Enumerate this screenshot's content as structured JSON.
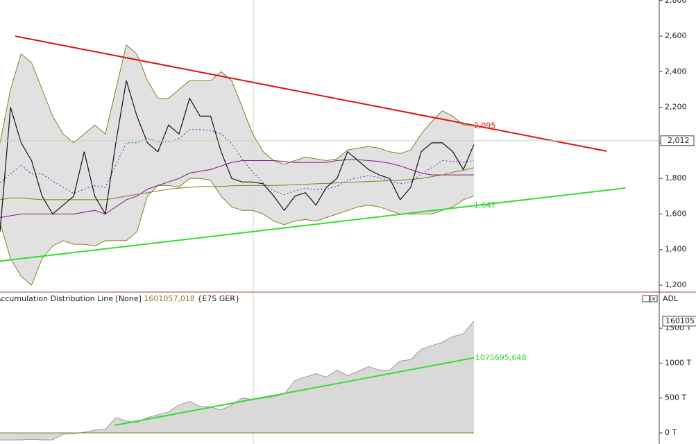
{
  "chart_data": [
    {
      "type": "line",
      "x": [
        0,
        1,
        2,
        3,
        4,
        5,
        6,
        7,
        8,
        9,
        10,
        11,
        12,
        13,
        14,
        15,
        16,
        17,
        18,
        19,
        20,
        21,
        22,
        23,
        24,
        25,
        26,
        27,
        28,
        29,
        30,
        31,
        32,
        33,
        34,
        35,
        36,
        37,
        38,
        39,
        40,
        41,
        42,
        43,
        44,
        45
      ],
      "xlim": [
        0,
        62.6
      ],
      "ylim": [
        1165,
        2803
      ],
      "yticks": [
        {
          "value": 1200,
          "label": "1,200"
        },
        {
          "value": 1400,
          "label": "1,400"
        },
        {
          "value": 1600,
          "label": "1,600"
        },
        {
          "value": 1800,
          "label": "1,800"
        },
        {
          "value": 2000,
          "label": "2,000"
        },
        {
          "value": 2200,
          "label": "2,200"
        },
        {
          "value": 2400,
          "label": "2,400"
        },
        {
          "value": 2600,
          "label": "2,600"
        },
        {
          "value": 2800,
          "label": "2,800"
        }
      ],
      "series": [
        {
          "color": "#808020",
          "fill": "#d9d9d9",
          "values": [
            2000,
            2300,
            2500,
            2450,
            2300,
            2150,
            2050,
            2000,
            2050,
            2100,
            2050,
            2300,
            2550,
            2500,
            2350,
            2250,
            2250,
            2300,
            2350,
            2350,
            2350,
            2400,
            2350,
            2200,
            2050,
            1950,
            1900,
            1880,
            1900,
            1920,
            1910,
            1900,
            1910,
            1960,
            1970,
            1980,
            1970,
            1950,
            1940,
            1960,
            2050,
            2120,
            2180,
            2150,
            2100,
            2100
          ]
        },
        {
          "color": "#808020",
          "values": [
            1550,
            1350,
            1250,
            1200,
            1350,
            1420,
            1450,
            1430,
            1430,
            1420,
            1450,
            1450,
            1450,
            1500,
            1700,
            1760,
            1760,
            1750,
            1800,
            1800,
            1790,
            1700,
            1640,
            1620,
            1620,
            1600,
            1560,
            1540,
            1560,
            1570,
            1560,
            1580,
            1600,
            1620,
            1640,
            1650,
            1640,
            1620,
            1600,
            1600,
            1600,
            1600,
            1620,
            1640,
            1680,
            1700
          ]
        },
        {
          "color": "#3040d0",
          "dash": true,
          "values": [
            1775,
            1825,
            1875,
            1825,
            1825,
            1785,
            1750,
            1715,
            1740,
            1760,
            1750,
            1875,
            2000,
            2000,
            2025,
            2005,
            2005,
            2025,
            2075,
            2075,
            2070,
            2050,
            1995,
            1910,
            1835,
            1775,
            1730,
            1710,
            1730,
            1745,
            1735,
            1740,
            1755,
            1790,
            1805,
            1815,
            1805,
            1785,
            1770,
            1780,
            1825,
            1860,
            1900,
            1895,
            1890,
            1900
          ]
        },
        {
          "color": "#7a1a7a",
          "values": [
            1580,
            1590,
            1600,
            1600,
            1600,
            1600,
            1600,
            1600,
            1610,
            1620,
            1600,
            1640,
            1680,
            1700,
            1740,
            1760,
            1780,
            1800,
            1830,
            1840,
            1850,
            1870,
            1890,
            1900,
            1900,
            1900,
            1900,
            1895,
            1890,
            1890,
            1890,
            1890,
            1900,
            1905,
            1905,
            1900,
            1895,
            1885,
            1870,
            1850,
            1830,
            1820,
            1820,
            1820,
            1820,
            1820
          ]
        },
        {
          "color": "#8a7a20",
          "values": [
            1680,
            1690,
            1690,
            1685,
            1680,
            1680,
            1680,
            1680,
            1680,
            1680,
            1680,
            1690,
            1700,
            1710,
            1720,
            1730,
            1740,
            1745,
            1750,
            1755,
            1755,
            1755,
            1758,
            1760,
            1760,
            1760,
            1760,
            1762,
            1765,
            1767,
            1770,
            1772,
            1775,
            1778,
            1780,
            1782,
            1785,
            1787,
            1790,
            1795,
            1800,
            1810,
            1820,
            1835,
            1845,
            1860
          ]
        },
        {
          "color": "#111111",
          "values": [
            1500,
            2200,
            2000,
            1900,
            1700,
            1600,
            1650,
            1700,
            1950,
            1700,
            1600,
            2000,
            2350,
            2150,
            2000,
            1950,
            2100,
            2050,
            2250,
            2150,
            2150,
            1950,
            1800,
            1780,
            1780,
            1770,
            1700,
            1620,
            1700,
            1720,
            1650,
            1750,
            1800,
            1950,
            1900,
            1850,
            1820,
            1800,
            1680,
            1750,
            1950,
            2000,
            2000,
            1950,
            1850,
            1990
          ]
        }
      ],
      "trendlines": [
        {
          "color": "#dd1111",
          "x": [
            1.45,
            57.6
          ],
          "values": [
            2600,
            1953
          ]
        },
        {
          "color": "#33dd33",
          "x": [
            0,
            59.4
          ],
          "values": [
            1335,
            1746
          ]
        }
      ],
      "annotations": [
        {
          "color": "#cc2222",
          "value": 2095,
          "label": "2,095"
        },
        {
          "color": "#33cc33",
          "value": 1647,
          "label": "1,647"
        }
      ],
      "last_price": {
        "value": 2012,
        "label": "2,012"
      }
    },
    {
      "type": "area",
      "title": "Accumulation Distribution Line [None]",
      "last_value": {
        "value": 1601.057018,
        "label": "1601057,018"
      },
      "symbol": "{E7S GER}",
      "axis_label": "ADL",
      "x": [
        0,
        1,
        2,
        3,
        4,
        5,
        6,
        7,
        8,
        9,
        10,
        11,
        12,
        13,
        14,
        15,
        16,
        17,
        18,
        19,
        20,
        21,
        22,
        23,
        24,
        25,
        26,
        27,
        28,
        29,
        30,
        31,
        32,
        33,
        34,
        35,
        36,
        37,
        38,
        39,
        40,
        41,
        42,
        43,
        44,
        45
      ],
      "xlim": [
        0,
        62.6
      ],
      "ylim": [
        -159,
        1988
      ],
      "yticks": [
        {
          "value": 0,
          "label": "0 T"
        },
        {
          "value": 500,
          "label": "500 T"
        },
        {
          "value": 1000,
          "label": "1000 T"
        },
        {
          "value": 1500,
          "label": "1500 T"
        }
      ],
      "series": [
        {
          "color": "#999999",
          "fill": "#d9d9d9",
          "values": [
            -100,
            -100,
            -100,
            -90,
            -100,
            -100,
            -20,
            -10,
            10,
            40,
            50,
            220,
            170,
            150,
            220,
            260,
            300,
            400,
            450,
            380,
            370,
            330,
            400,
            500,
            480,
            500,
            520,
            560,
            750,
            800,
            850,
            800,
            900,
            820,
            880,
            950,
            900,
            900,
            1030,
            1050,
            1200,
            1250,
            1300,
            1380,
            1420,
            1601.057018
          ]
        }
      ],
      "trendline": {
        "color": "#33dd33",
        "x": [
          10.9,
          45
        ],
        "values": [
          109,
          1075.695648
        ]
      },
      "trend_label": {
        "value": 1075.695648,
        "label": "1075695,648"
      }
    }
  ]
}
